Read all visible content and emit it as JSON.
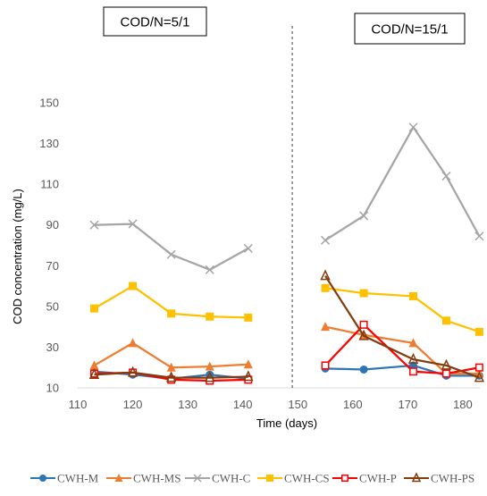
{
  "chart_data": {
    "type": "line",
    "xlabel": "Time (days)",
    "ylabel": "COD concentration (mg/L)",
    "xlim": [
      110,
      185
    ],
    "ylim": [
      10,
      150
    ],
    "x_ticks": [
      110,
      120,
      130,
      140,
      150,
      160,
      170,
      180
    ],
    "y_ticks": [
      10,
      30,
      50,
      70,
      90,
      110,
      130,
      150
    ],
    "divider_x": 149,
    "phases": [
      {
        "label": "COD/N=5/1",
        "position": "left"
      },
      {
        "label": "COD/N=15/1",
        "position": "right"
      }
    ],
    "legend_position": "bottom",
    "grid": false,
    "series": [
      {
        "name": "CWH-M",
        "color": "#2E75B6",
        "marker": "circle",
        "segments": [
          {
            "x": [
              113,
              120,
              127,
              134,
              141
            ],
            "y": [
              18,
              16.5,
              14.5,
              16.5,
              14.5
            ]
          },
          {
            "x": [
              155,
              162,
              171,
              177,
              183
            ],
            "y": [
              19.5,
              19,
              21,
              16,
              16
            ]
          }
        ]
      },
      {
        "name": "CWH-MS",
        "color": "#ED7D31",
        "marker": "triangle",
        "segments": [
          {
            "x": [
              113,
              120,
              127,
              134,
              141
            ],
            "y": [
              21,
              32,
              20,
              20.5,
              21.5
            ]
          },
          {
            "x": [
              155,
              162,
              171,
              177,
              183
            ],
            "y": [
              40,
              36,
              32,
              17,
              17
            ]
          }
        ]
      },
      {
        "name": "CWH-C",
        "color": "#A5A5A5",
        "marker": "x",
        "segments": [
          {
            "x": [
              113,
              120,
              127,
              134,
              141
            ],
            "y": [
              90,
              90.5,
              75.5,
              68,
              78.5
            ]
          },
          {
            "x": [
              155,
              162,
              171,
              177,
              183
            ],
            "y": [
              82.5,
              94.5,
              138,
              114,
              84.5
            ]
          }
        ]
      },
      {
        "name": "CWH-CS",
        "color": "#FFC000",
        "marker": "square",
        "segments": [
          {
            "x": [
              113,
              120,
              127,
              134,
              141
            ],
            "y": [
              49,
              60,
              46.5,
              45,
              44.5
            ]
          },
          {
            "x": [
              155,
              162,
              171,
              177,
              183
            ],
            "y": [
              59,
              56.5,
              55,
              43,
              37.5
            ]
          }
        ]
      },
      {
        "name": "CWH-P",
        "color": "#FF0000",
        "marker": "square-open",
        "segments": [
          {
            "x": [
              113,
              120,
              127,
              134,
              141
            ],
            "y": [
              17,
              17.5,
              14,
              13.5,
              14
            ]
          },
          {
            "x": [
              155,
              162,
              171,
              177,
              183
            ],
            "y": [
              21,
              41,
              18,
              17,
              20
            ]
          }
        ]
      },
      {
        "name": "CWH-PS",
        "color": "#843C0C",
        "marker": "triangle-open",
        "segments": [
          {
            "x": [
              113,
              120,
              127,
              134,
              141
            ],
            "y": [
              16.5,
              17.5,
              15,
              15,
              15.5
            ]
          },
          {
            "x": [
              155,
              162,
              171,
              177,
              183
            ],
            "y": [
              65,
              35.5,
              24,
              21,
              15
            ]
          }
        ]
      }
    ]
  }
}
